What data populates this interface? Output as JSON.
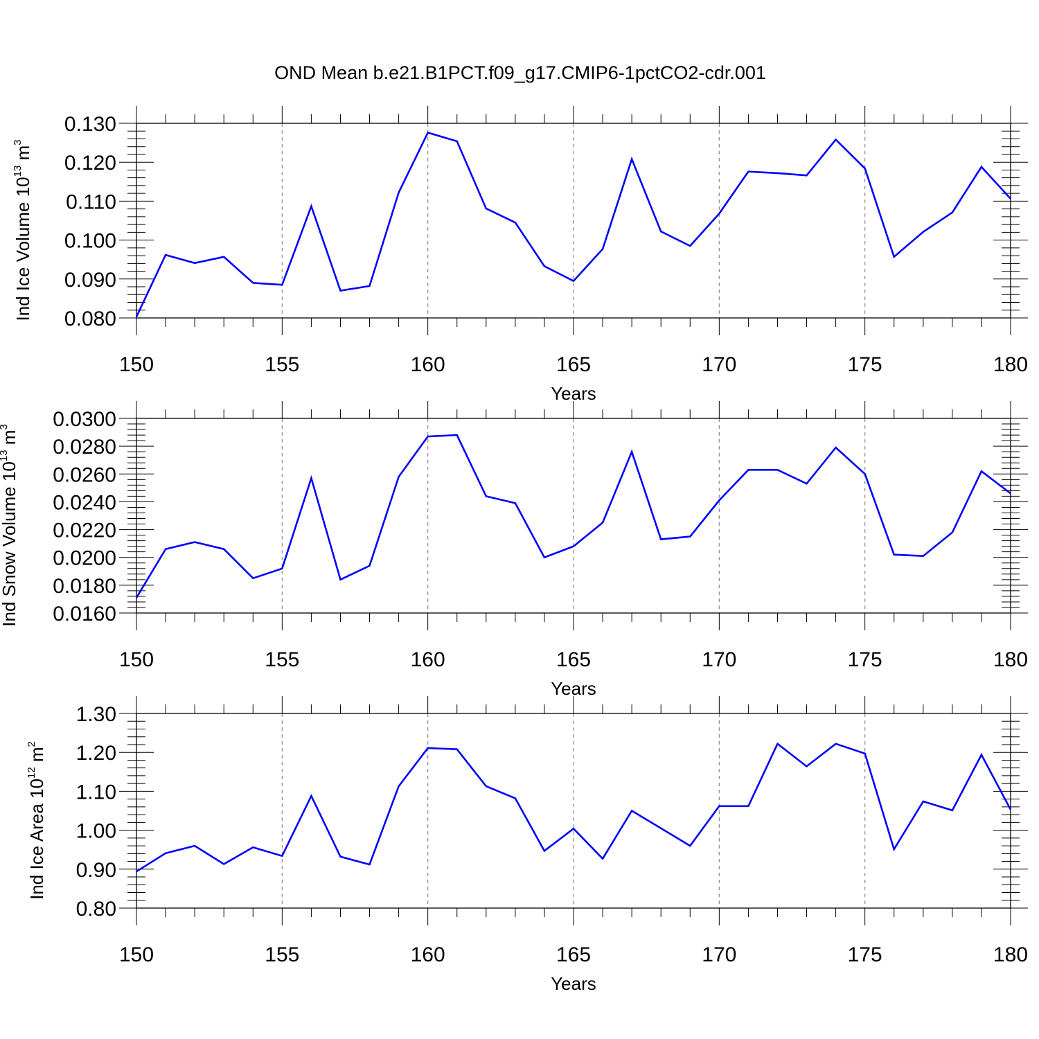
{
  "title": "OND Mean b.e21.B1PCT.f09_g17.CMIP6-1pctCO2-cdr.001",
  "colors": {
    "series": "#0000ff",
    "axis": "#000000",
    "grid": "#888888"
  },
  "chart_data": [
    {
      "type": "line",
      "ylabel_main": "Ind Ice Volume 10",
      "ylabel_exp": "13",
      "ylabel_unit": " m",
      "ylabel_unit_exp": "3",
      "xlabel": "Years",
      "xlim": [
        150,
        180
      ],
      "ylim": [
        0.08,
        0.13
      ],
      "xticks": [
        150,
        155,
        160,
        165,
        170,
        175,
        180
      ],
      "yticks": [
        0.08,
        0.09,
        0.1,
        0.11,
        0.12,
        0.13
      ],
      "ytick_labels": [
        "0.080",
        "0.090",
        "0.100",
        "0.110",
        "0.120",
        "0.130"
      ],
      "grid_x": true,
      "x": [
        150,
        151,
        152,
        153,
        154,
        155,
        156,
        157,
        158,
        159,
        160,
        161,
        162,
        163,
        164,
        165,
        166,
        167,
        168,
        169,
        170,
        171,
        172,
        173,
        174,
        175,
        176,
        177,
        178,
        179,
        180
      ],
      "values": [
        0.0803,
        0.0962,
        0.0941,
        0.0957,
        0.089,
        0.0885,
        0.1087,
        0.087,
        0.0882,
        0.1122,
        0.1276,
        0.1254,
        0.1081,
        0.1045,
        0.0933,
        0.0895,
        0.0977,
        0.1208,
        0.1022,
        0.0985,
        0.1068,
        0.1176,
        0.1172,
        0.1166,
        0.1258,
        0.1184,
        0.0957,
        0.1021,
        0.1071,
        0.1188,
        0.1106
      ]
    },
    {
      "type": "line",
      "ylabel_main": "Ind Snow Volume 10",
      "ylabel_exp": "13",
      "ylabel_unit": " m",
      "ylabel_unit_exp": "3",
      "xlabel": "Years",
      "xlim": [
        150,
        180
      ],
      "ylim": [
        0.016,
        0.03
      ],
      "xticks": [
        150,
        155,
        160,
        165,
        170,
        175,
        180
      ],
      "yticks": [
        0.016,
        0.018,
        0.02,
        0.022,
        0.024,
        0.026,
        0.028,
        0.03
      ],
      "ytick_labels": [
        "0.0160",
        "0.0180",
        "0.0200",
        "0.0220",
        "0.0240",
        "0.0260",
        "0.0280",
        "0.0300"
      ],
      "grid_x": true,
      "x": [
        150,
        151,
        152,
        153,
        154,
        155,
        156,
        157,
        158,
        159,
        160,
        161,
        162,
        163,
        164,
        165,
        166,
        167,
        168,
        169,
        170,
        171,
        172,
        173,
        174,
        175,
        176,
        177,
        178,
        179,
        180
      ],
      "values": [
        0.0171,
        0.0206,
        0.0211,
        0.0206,
        0.0185,
        0.0192,
        0.0257,
        0.0184,
        0.0194,
        0.0258,
        0.0287,
        0.0288,
        0.0244,
        0.0239,
        0.02,
        0.0208,
        0.0225,
        0.0276,
        0.0213,
        0.0215,
        0.0241,
        0.0263,
        0.0263,
        0.0253,
        0.0279,
        0.026,
        0.0202,
        0.0201,
        0.0218,
        0.0262,
        0.0246
      ]
    },
    {
      "type": "line",
      "ylabel_main": "Ind Ice Area 10",
      "ylabel_exp": "12",
      "ylabel_unit": " m",
      "ylabel_unit_exp": "2",
      "xlabel": "Years",
      "xlim": [
        150,
        180
      ],
      "ylim": [
        0.8,
        1.3
      ],
      "xticks": [
        150,
        155,
        160,
        165,
        170,
        175,
        180
      ],
      "yticks": [
        0.8,
        0.9,
        1.0,
        1.1,
        1.2,
        1.3
      ],
      "ytick_labels": [
        "0.80",
        "0.90",
        "1.00",
        "1.10",
        "1.20",
        "1.30"
      ],
      "grid_x": true,
      "x": [
        150,
        151,
        152,
        153,
        154,
        155,
        156,
        157,
        158,
        159,
        160,
        161,
        162,
        163,
        164,
        165,
        166,
        167,
        168,
        169,
        170,
        171,
        172,
        173,
        174,
        175,
        176,
        177,
        178,
        179,
        180
      ],
      "values": [
        0.894,
        0.941,
        0.96,
        0.913,
        0.956,
        0.934,
        1.088,
        0.932,
        0.912,
        1.113,
        1.211,
        1.208,
        1.113,
        1.082,
        0.947,
        1.004,
        0.927,
        1.05,
        1.005,
        0.96,
        1.062,
        1.062,
        1.222,
        1.164,
        1.222,
        1.197,
        0.951,
        1.074,
        1.051,
        1.194,
        1.053
      ]
    }
  ]
}
